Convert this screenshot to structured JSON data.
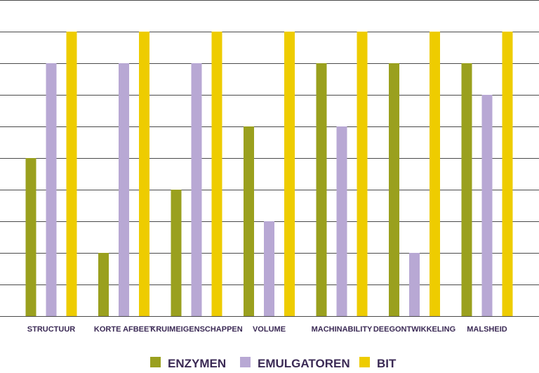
{
  "chart_data": {
    "type": "bar",
    "categories": [
      "STRUCTUUR",
      "KORTE AFBEET",
      "KRUIMEIGENSCHAPPEN",
      "VOLUME",
      "MACHINABILITY",
      "DEEGONTWIKKELING",
      "MALSHEID"
    ],
    "series": [
      {
        "name": "ENZYMEN",
        "values": [
          5,
          2,
          4,
          6,
          8,
          8,
          8
        ]
      },
      {
        "name": "EMULGATOREN",
        "values": [
          8,
          8,
          8,
          3,
          6,
          2,
          7
        ]
      },
      {
        "name": "BIT",
        "values": [
          9,
          9,
          9,
          9,
          9,
          9,
          9
        ]
      }
    ],
    "ylim": [
      0,
      10
    ],
    "grid": true,
    "legend_position": "bottom-center",
    "colors": {
      "ENZYMEN": "#9aa01e",
      "EMULGATOREN": "#b8a8d4",
      "BIT": "#eecc00",
      "grid": "#4a4a4a"
    }
  }
}
